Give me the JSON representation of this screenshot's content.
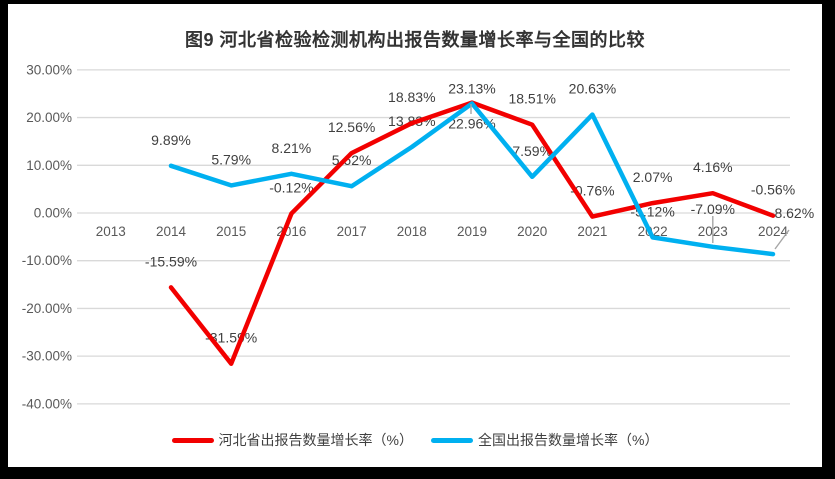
{
  "chart_data": {
    "type": "line",
    "title": "图9 河北省检验检测机构出报告数量增长率与全国的比较",
    "categories": [
      "2013",
      "2014",
      "2015",
      "2016",
      "2017",
      "2018",
      "2019",
      "2020",
      "2021",
      "2022",
      "2023",
      "2024"
    ],
    "series": [
      {
        "name": "河北省出报告数量增长率（%）",
        "color": "#f20000",
        "start_category": "2014",
        "values": [
          -15.59,
          -31.59,
          -0.12,
          12.56,
          18.83,
          23.13,
          18.51,
          -0.76,
          2.07,
          4.16,
          -0.56
        ],
        "labels": [
          "-15.59%",
          "-31.59%",
          "-0.12%",
          "12.56%",
          "18.83%",
          "23.13%",
          "18.51%",
          "-0.76%",
          "2.07%",
          "4.16%",
          "-0.56%"
        ]
      },
      {
        "name": "全国出报告数量增长率（%）",
        "color": "#00b0f0",
        "start_category": "2014",
        "values": [
          9.89,
          5.79,
          8.21,
          5.62,
          13.83,
          22.96,
          7.59,
          20.63,
          -5.12,
          -7.09,
          -8.62
        ],
        "labels": [
          "9.89%",
          "5.79%",
          "8.21%",
          "5.62%",
          "13.83%",
          "22.96%",
          "7.59%",
          "20.63%",
          "-5.12%",
          "-7.09%",
          "-8.62%"
        ]
      }
    ],
    "y_ticks": [
      "30.00%",
      "20.00%",
      "10.00%",
      "0.00%",
      "-10.00%",
      "-20.00%",
      "-30.00%",
      "-40.00%"
    ],
    "y_tick_values": [
      30,
      20,
      10,
      0,
      -10,
      -20,
      -30,
      -40
    ],
    "ylim": [
      -40,
      30
    ],
    "xlabel": "",
    "ylabel": "",
    "grid": true,
    "legend_position": "bottom",
    "colors": {
      "grid_line": "#d9d9d9",
      "axis_text": "#595959",
      "data_label_text": "#404040",
      "leader_line": "#a6a6a6",
      "title_text": "#333333",
      "plot_background": "#ffffff",
      "frame_background": "#000000"
    }
  }
}
